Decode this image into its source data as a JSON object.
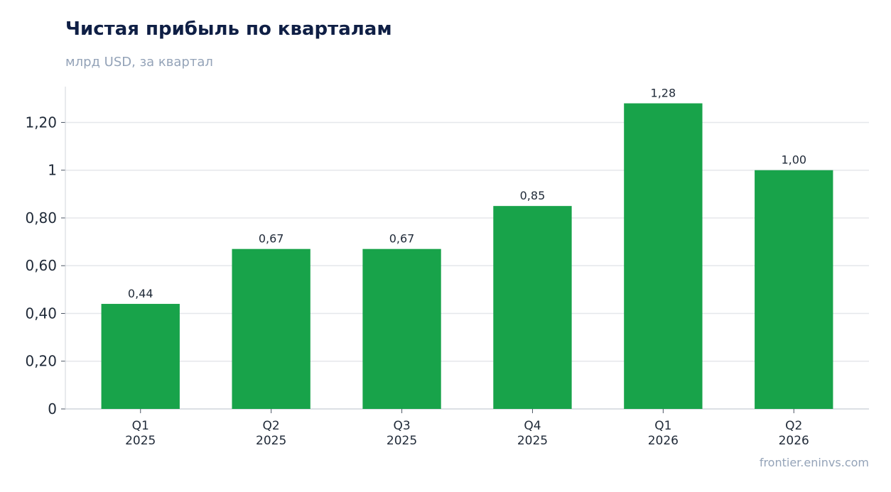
{
  "title": "Чистая прибыль по кварталам",
  "subtitle": "млрд USD, за квартал",
  "source": "frontier.eninvs.com",
  "colors": {
    "bar": "#18a34a",
    "grid": "#e5e7eb",
    "axis": "#d1d5db",
    "text": "#1f2937"
  },
  "chart_data": {
    "type": "bar",
    "title": "Чистая прибыль по кварталам",
    "subtitle": "млрд USD, за квартал",
    "categories": [
      [
        "Q1",
        "2025"
      ],
      [
        "Q2",
        "2025"
      ],
      [
        "Q3",
        "2025"
      ],
      [
        "Q4",
        "2025"
      ],
      [
        "Q1",
        "2026"
      ],
      [
        "Q2",
        "2026"
      ]
    ],
    "values": [
      0.44,
      0.67,
      0.67,
      0.85,
      1.28,
      1.0
    ],
    "value_labels": [
      "0,44",
      "0,67",
      "0,67",
      "0,85",
      "1,28",
      "1,00"
    ],
    "yticks": [
      0,
      0.2,
      0.4,
      0.6,
      0.8,
      1,
      1.2
    ],
    "ytick_labels": [
      "0",
      "0,20",
      "0,40",
      "0,60",
      "0,80",
      "1",
      "1,20"
    ],
    "ylim": [
      0,
      1.35
    ],
    "grid": true,
    "legend": "none"
  }
}
